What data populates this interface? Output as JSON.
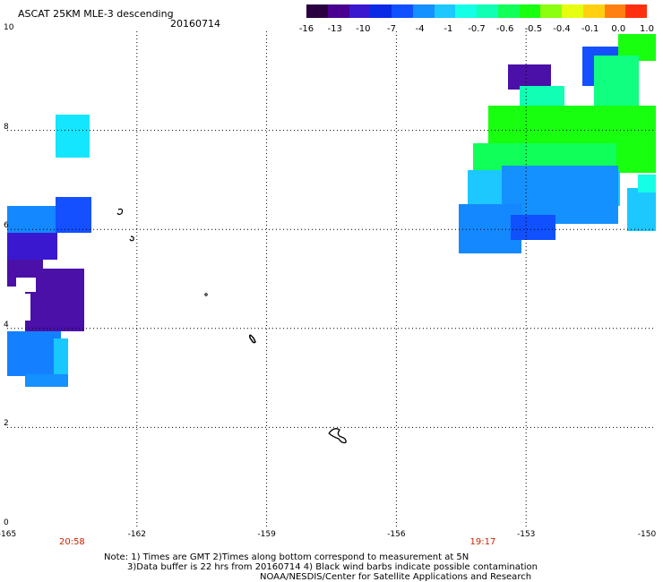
{
  "header": {
    "title": "ASCAT 25KM MLE-3 descending",
    "date": "20160714"
  },
  "colorbar": {
    "colors": [
      "#2a0040",
      "#4a0090",
      "#3a18d0",
      "#0a2ae6",
      "#1050ff",
      "#1490ff",
      "#1cc8ff",
      "#14ffe6",
      "#10ffb4",
      "#10ff58",
      "#18ff10",
      "#8cff10",
      "#e6ff10",
      "#ffd010",
      "#ff8010",
      "#ff3010"
    ],
    "tick_labels": [
      "-16",
      "-13",
      "-10",
      "-7",
      "-4",
      "-1",
      "-0.7",
      "-0.6",
      "-0.5",
      "-0.4",
      "-0.1",
      "0.0",
      "1.0"
    ]
  },
  "map": {
    "y_axis_labels": [
      "10",
      "8",
      "6",
      "4",
      "2",
      "0"
    ],
    "x_axis_labels": [
      "-165",
      "-162",
      "-159",
      "-156",
      "-153",
      "-150"
    ],
    "lon_range": [
      -165,
      -150
    ],
    "lat_range": [
      0,
      10
    ],
    "times": [
      {
        "label": "20:58",
        "lon": -163.5
      },
      {
        "label": "19:17",
        "lon": -154.0
      }
    ],
    "gridlines": "dotted"
  },
  "footer": {
    "note_line1": "Note: 1) Times are GMT 2)Times along bottom correspond to measurement at 5N",
    "note_line2": "3)Data buffer is 22 hrs from 20160714 4) Black wind barbs indicate possible contamination",
    "note_line3": "NOAA/NESDIS/Center for Satellite Applications and Research"
  }
}
